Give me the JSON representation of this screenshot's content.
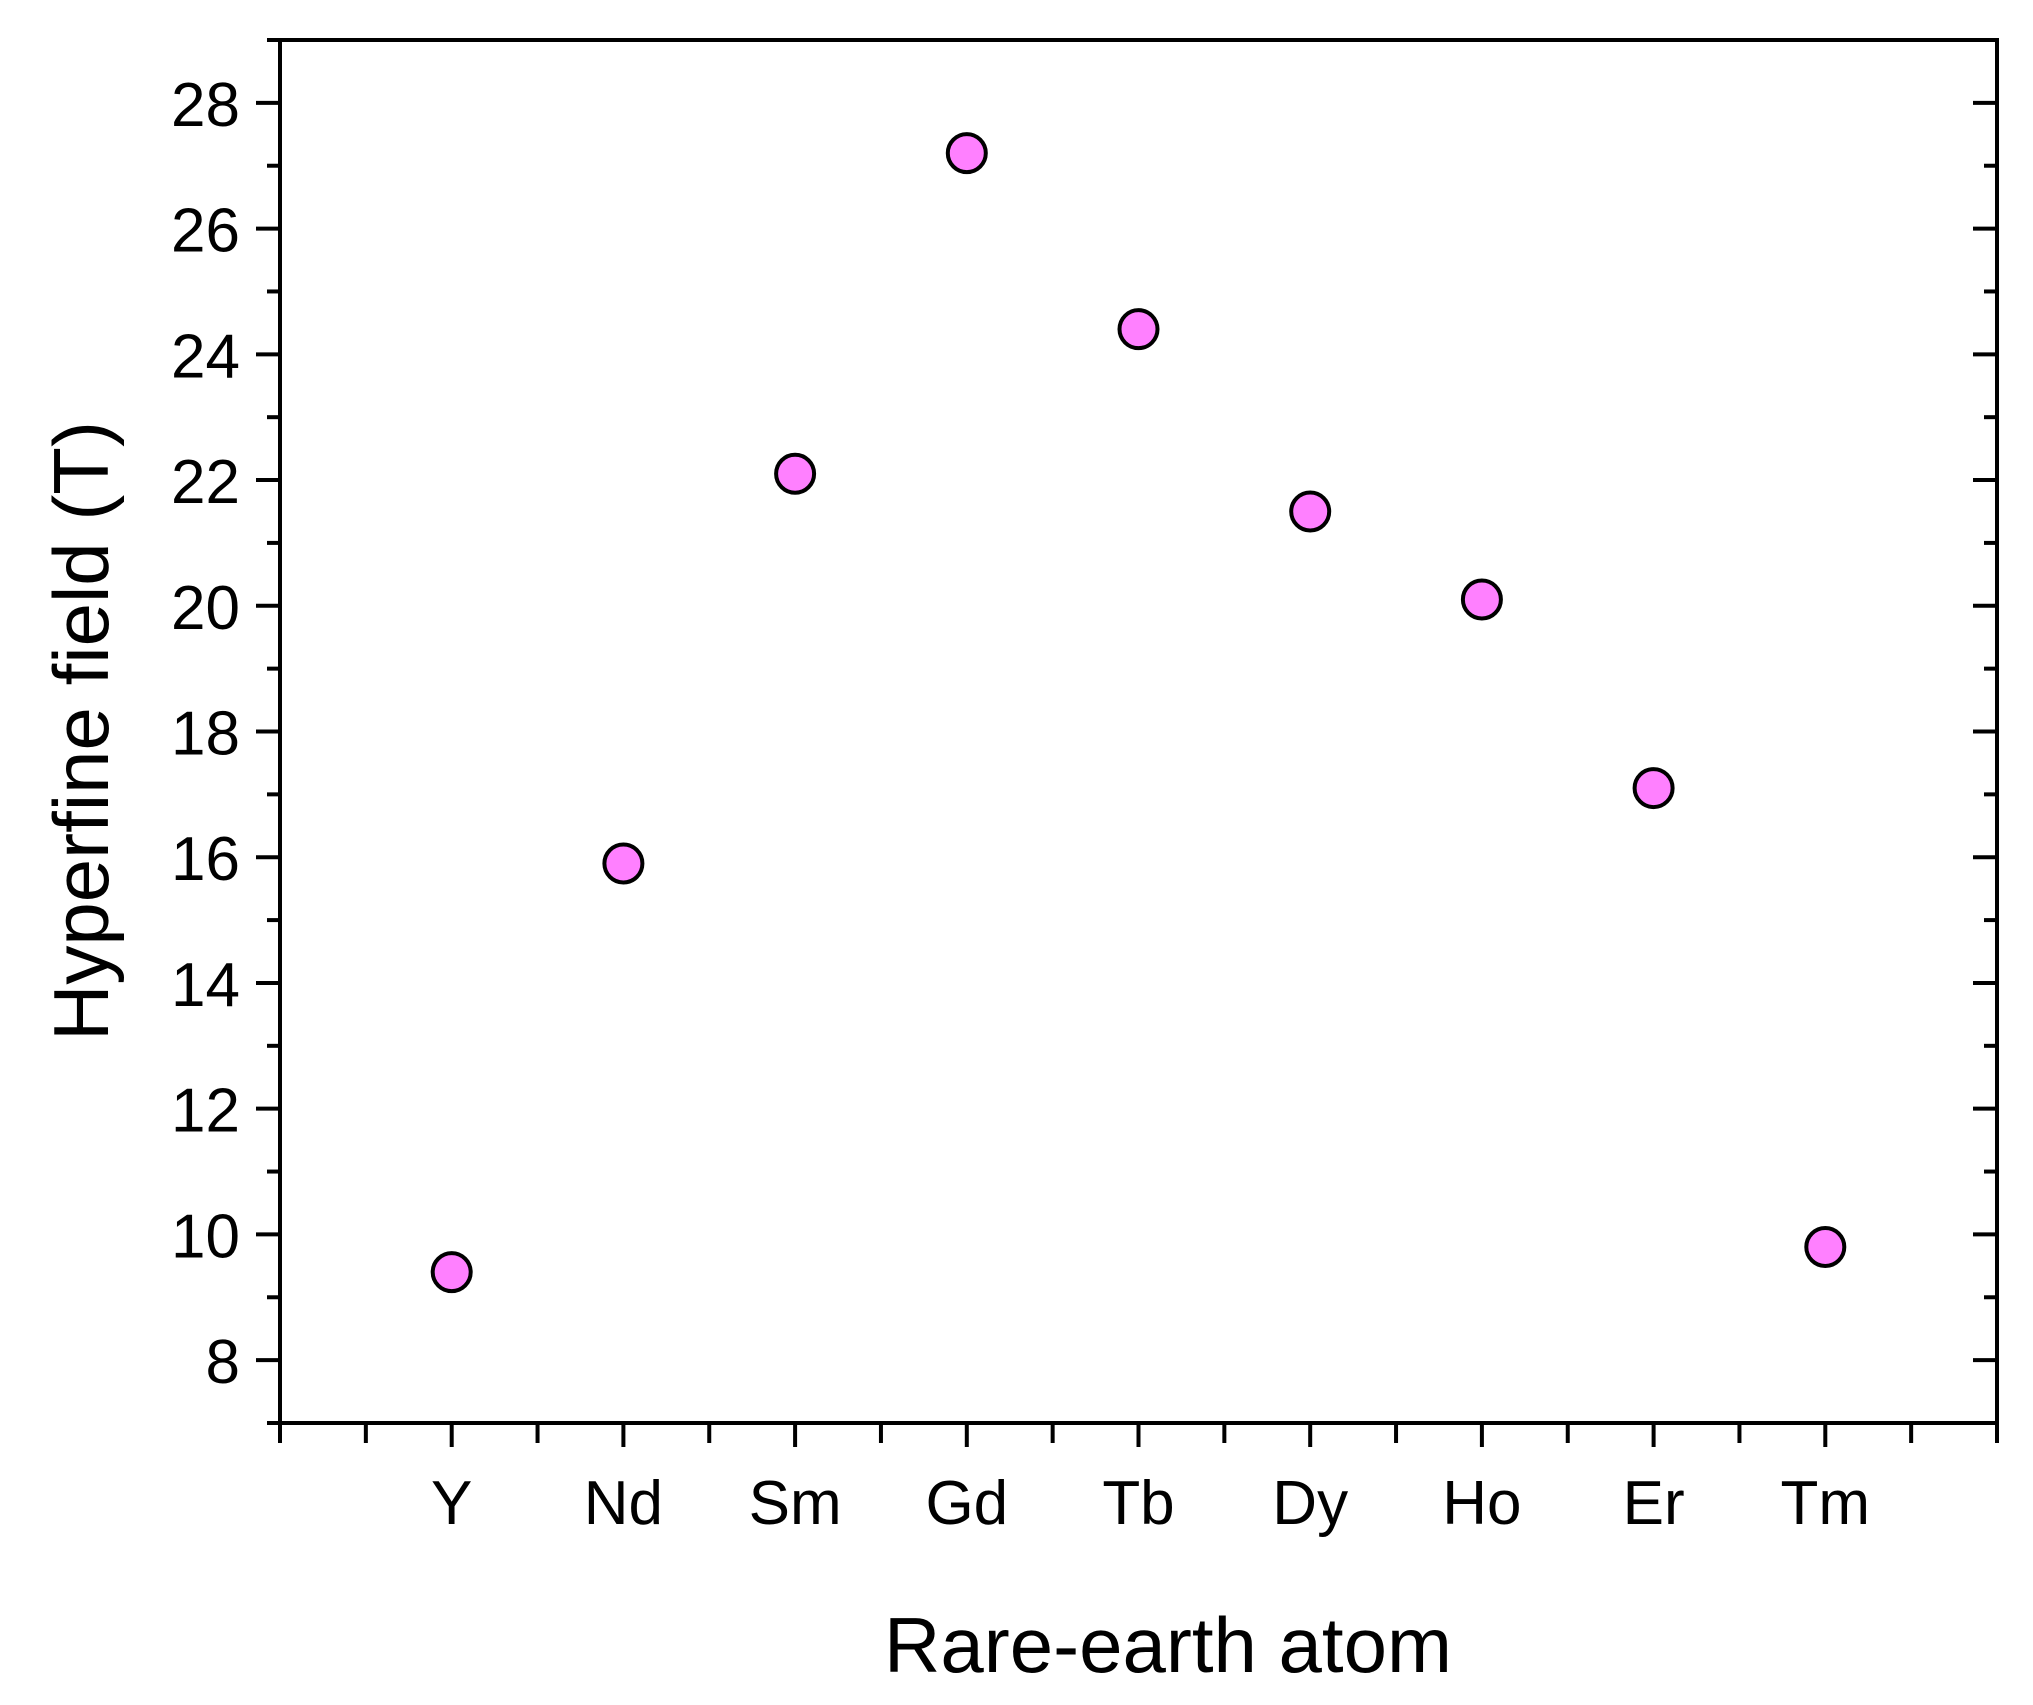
{
  "chart_data": {
    "type": "scatter",
    "title": "",
    "xlabel": "Rare-earth atom",
    "ylabel": "Hyperfine field (T)",
    "categories": [
      "Y",
      "Nd",
      "Sm",
      "Gd",
      "Tb",
      "Dy",
      "Ho",
      "Er",
      "Tm"
    ],
    "series": [
      {
        "values": [
          9.4,
          15.9,
          22.1,
          27.2,
          24.4,
          21.5,
          20.1,
          17.1,
          9.8
        ]
      }
    ],
    "ylim": [
      7,
      29
    ],
    "yticks": [
      8,
      10,
      12,
      14,
      16,
      18,
      20,
      22,
      24,
      26,
      28
    ],
    "grid": false,
    "colors": {
      "marker_fill": "#ff80ff",
      "marker_stroke": "#000000",
      "axis": "#000000"
    }
  }
}
